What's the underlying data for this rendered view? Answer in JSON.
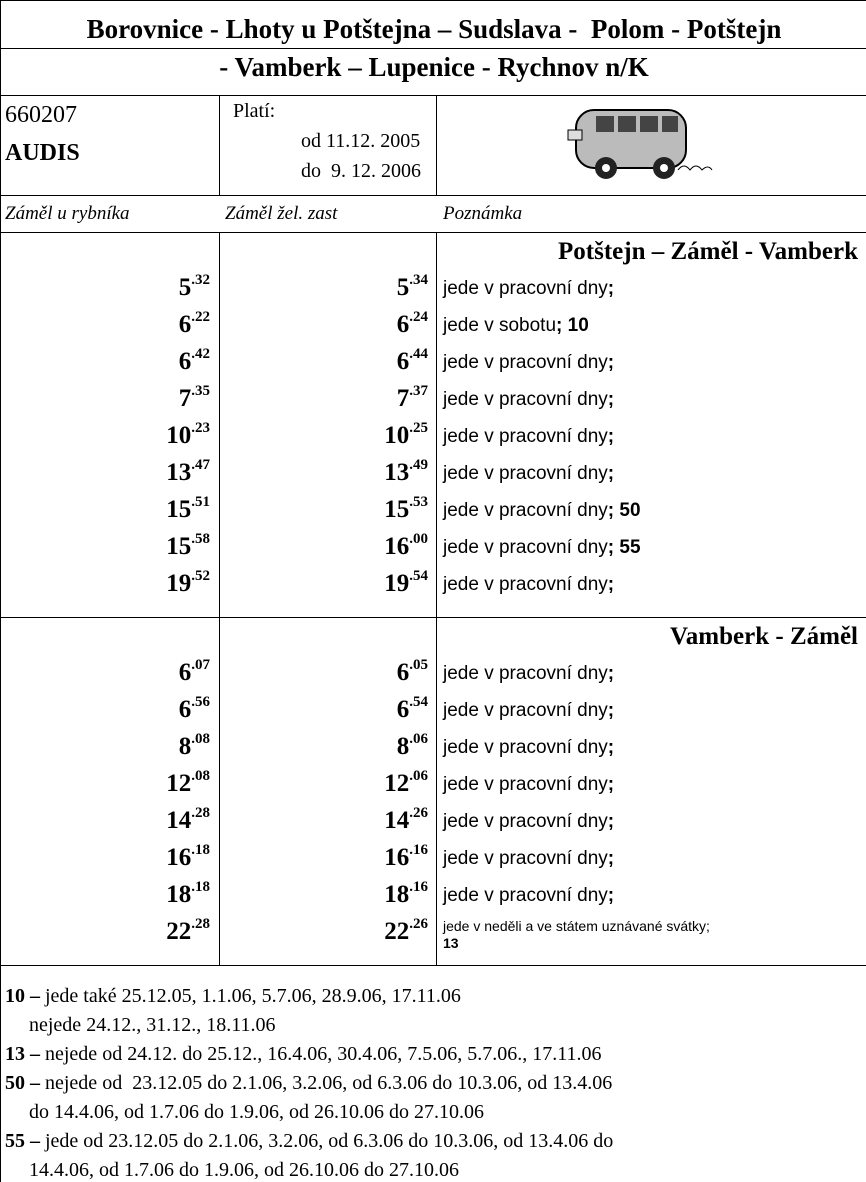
{
  "title": [
    "Borovnice - Lhoty u Potštejna – Sudslava -  Polom - Potštejn",
    "- Vamberk – Lupenice - Rychnov n/K"
  ],
  "line_number": "660207",
  "operator": "AUDIS",
  "validity": {
    "label": "Platí:",
    "from": "od 11.12. 2005",
    "to": "do  9. 12. 2006"
  },
  "columns": [
    "Záměl u rybníka",
    "Záměl žel. zast",
    "Poznámka"
  ],
  "sections": [
    {
      "heading": "Potštejn – Záměl - Vamberk",
      "rows": [
        {
          "a": [
            "5",
            ".32"
          ],
          "b": [
            "5",
            ".34"
          ],
          "note": "jede v pracovní dny",
          "code": ";"
        },
        {
          "a": [
            "6",
            ".22"
          ],
          "b": [
            "6",
            ".24"
          ],
          "note": "jede v sobotu",
          "code": "; 10"
        },
        {
          "a": [
            "6",
            ".42"
          ],
          "b": [
            "6",
            ".44"
          ],
          "note": "jede v pracovní dny",
          "code": ";"
        },
        {
          "a": [
            "7",
            ".35"
          ],
          "b": [
            "7",
            ".37"
          ],
          "note": "jede v pracovní dny",
          "code": ";"
        },
        {
          "a": [
            "10",
            ".23"
          ],
          "b": [
            "10",
            ".25"
          ],
          "note": "jede v pracovní dny",
          "code": ";"
        },
        {
          "a": [
            "13",
            ".47"
          ],
          "b": [
            "13",
            ".49"
          ],
          "note": "jede v pracovní dny",
          "code": ";"
        },
        {
          "a": [
            "15",
            ".51"
          ],
          "b": [
            "15",
            ".53"
          ],
          "note": "jede v pracovní dny",
          "code": "; 50"
        },
        {
          "a": [
            "15",
            ".58"
          ],
          "b": [
            "16",
            ".00"
          ],
          "note": "jede v pracovní dny",
          "code": "; 55"
        },
        {
          "a": [
            "19",
            ".52"
          ],
          "b": [
            "19",
            ".54"
          ],
          "note": "jede v pracovní dny",
          "code": ";"
        }
      ]
    },
    {
      "heading": "Vamberk - Záměl",
      "rows": [
        {
          "a": [
            "6",
            ".07"
          ],
          "b": [
            "6",
            ".05"
          ],
          "note": "jede v pracovní dny",
          "code": ";"
        },
        {
          "a": [
            "6",
            ".56"
          ],
          "b": [
            "6",
            ".54"
          ],
          "note": "jede v pracovní dny",
          "code": ";"
        },
        {
          "a": [
            "8",
            ".08"
          ],
          "b": [
            "8",
            ".06"
          ],
          "note": "jede v pracovní dny",
          "code": ";"
        },
        {
          "a": [
            "12",
            ".08"
          ],
          "b": [
            "12",
            ".06"
          ],
          "note": "jede v pracovní dny",
          "code": ";"
        },
        {
          "a": [
            "14",
            ".28"
          ],
          "b": [
            "14",
            ".26"
          ],
          "note": "jede v pracovní dny",
          "code": ";"
        },
        {
          "a": [
            "16",
            ".18"
          ],
          "b": [
            "16",
            ".16"
          ],
          "note": "jede v pracovní dny",
          "code": ";"
        },
        {
          "a": [
            "18",
            ".18"
          ],
          "b": [
            "18",
            ".16"
          ],
          "note": "jede v pracovní dny",
          "code": ";"
        },
        {
          "a": [
            "22",
            ".28"
          ],
          "b": [
            "22",
            ".26"
          ],
          "note": "jede v neděli a ve státem uznávané svátky;",
          "code": "13",
          "small": true
        }
      ]
    }
  ],
  "footnotes": [
    {
      "code": "10 –",
      "lines": [
        "jede také 25.12.05, 1.1.06, 5.7.06, 28.9.06, 17.11.06",
        "nejede 24.12., 31.12., 18.11.06"
      ]
    },
    {
      "code": "13 –",
      "lines": [
        "nejede od 24.12. do 25.12., 16.4.06, 30.4.06, 7.5.06, 5.7.06., 17.11.06"
      ]
    },
    {
      "code": "50 –",
      "lines": [
        "nejede od  23.12.05 do 2.1.06, 3.2.06, od 6.3.06 do 10.3.06, od 13.4.06",
        "do 14.4.06, od 1.7.06 do 1.9.06, od 26.10.06 do 27.10.06"
      ]
    },
    {
      "code": "55 –",
      "lines": [
        "jede od 23.12.05 do 2.1.06, 3.2.06, od 6.3.06 do 10.3.06, od 13.4.06 do",
        "14.4.06, od 1.7.06 do 1.9.06, od 26.10.06 do 27.10.06"
      ]
    }
  ]
}
